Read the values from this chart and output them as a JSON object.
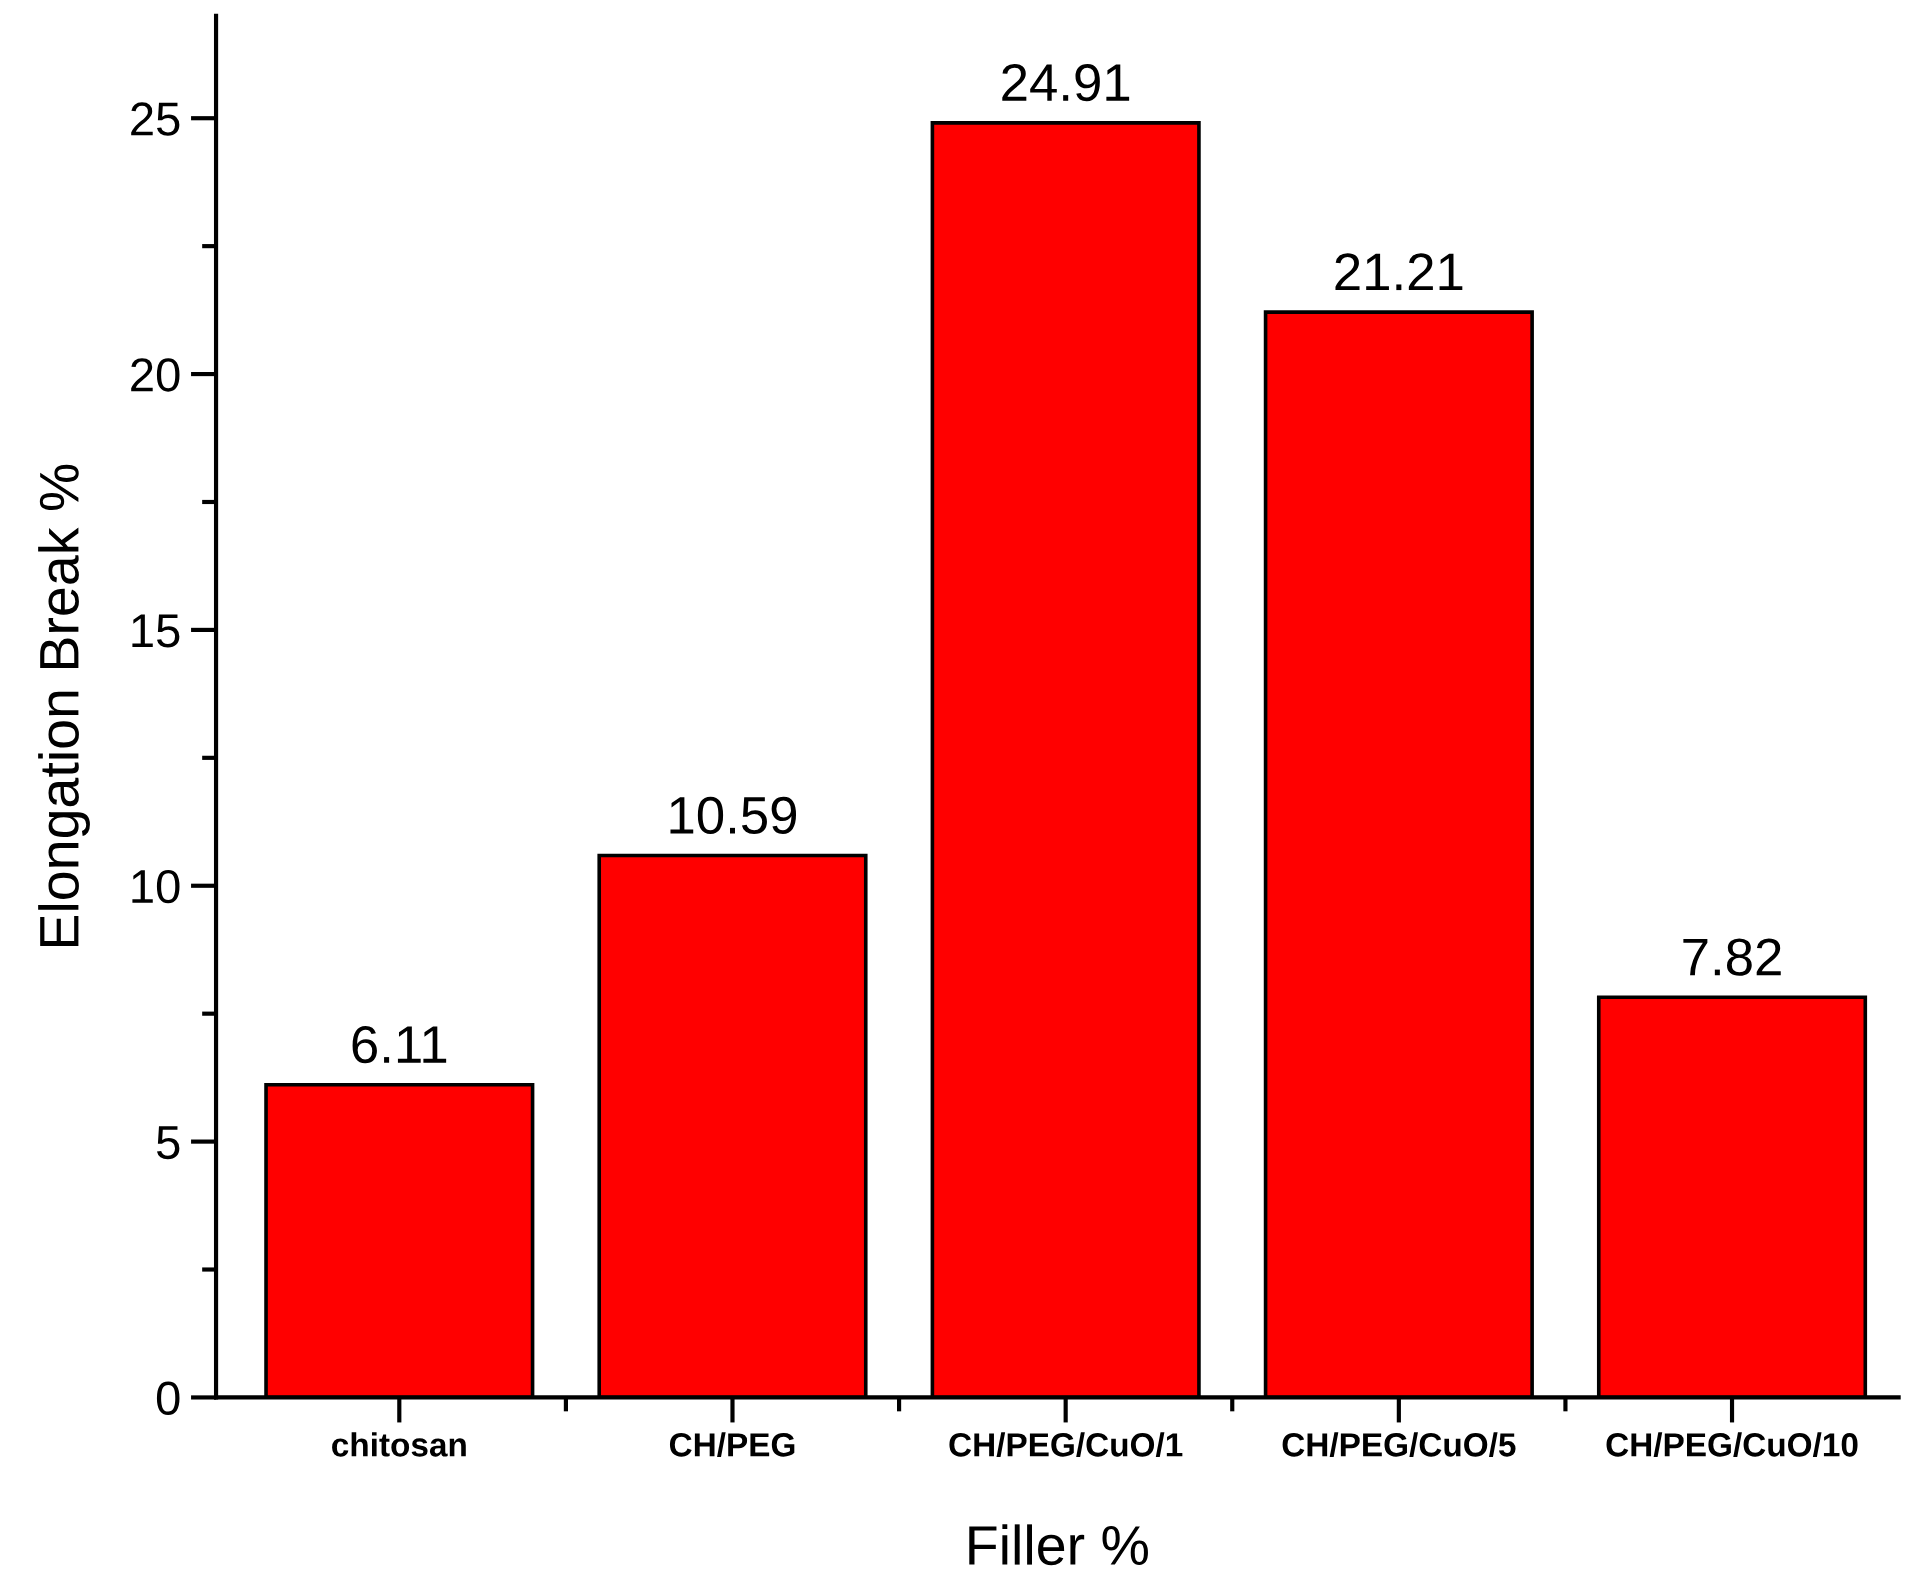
{
  "chart_data": {
    "type": "bar",
    "xlabel": "Filler %",
    "ylabel": "Elongation Break %",
    "categories": [
      "chitosan",
      "CH/PEG",
      "CH/PEG/CuO/1",
      "CH/PEG/CuO/5",
      "CH/PEG/CuO/10"
    ],
    "values": [
      6.11,
      10.59,
      24.91,
      21.21,
      7.82
    ],
    "color": "#ff0000",
    "ylim": [
      0,
      27
    ],
    "yticks": [
      0,
      5,
      10,
      15,
      20,
      25
    ],
    "data_labels": true,
    "grid": false
  }
}
